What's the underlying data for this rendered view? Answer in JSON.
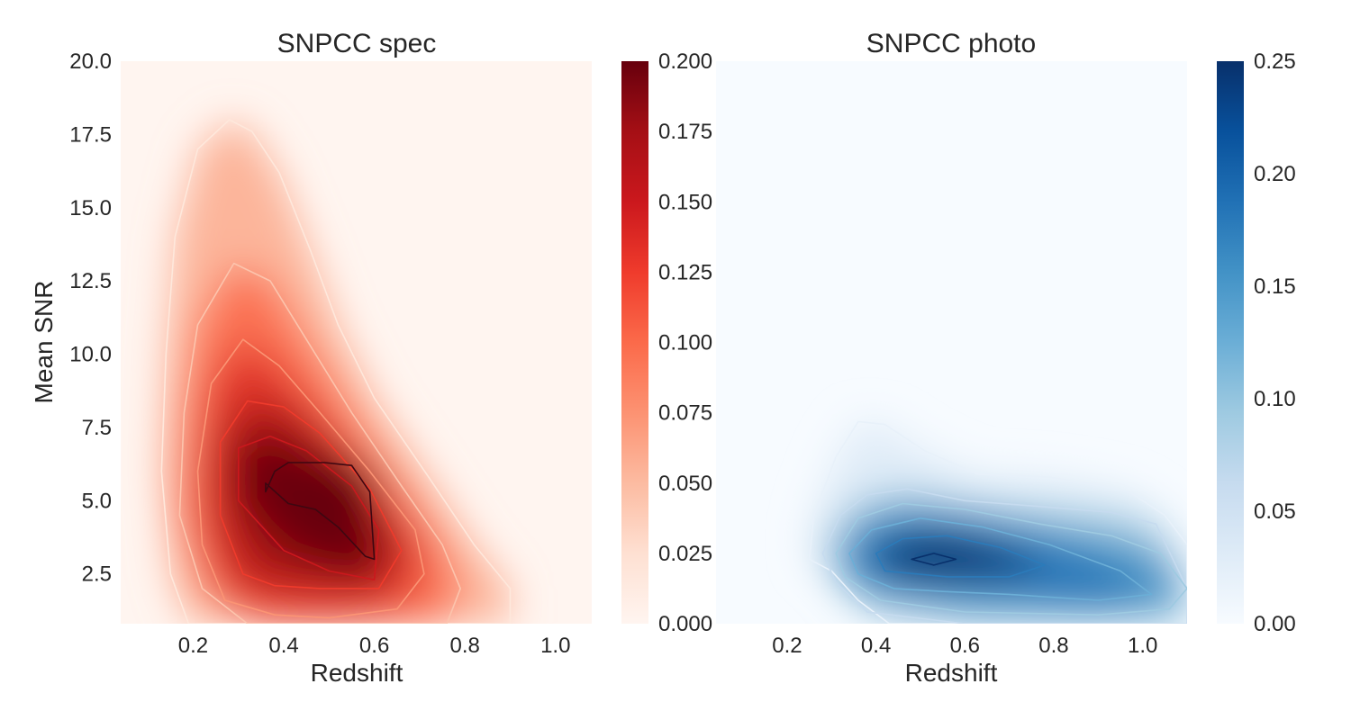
{
  "chart_data": [
    {
      "type": "heatmap",
      "title": "SNPCC spec",
      "xlabel": "Redshift",
      "ylabel": "Mean SNR",
      "colormap": "Reds",
      "xlim": [
        0.04,
        1.08
      ],
      "ylim": [
        0.8,
        20.0
      ],
      "x_ticks": [
        "0.2",
        "0.4",
        "0.6",
        "0.8",
        "1.0"
      ],
      "y_ticks": [
        "2.5",
        "5.0",
        "7.5",
        "10.0",
        "12.5",
        "15.0",
        "17.5",
        "20.0"
      ],
      "colorbar_range": [
        0.0,
        0.2
      ],
      "colorbar_ticks": [
        "0.000",
        "0.025",
        "0.050",
        "0.075",
        "0.100",
        "0.125",
        "0.150",
        "0.175",
        "0.200"
      ],
      "density_peak": {
        "x": 0.5,
        "y": 5.2,
        "value": 0.19
      },
      "contours": [
        {
          "level": 0.02,
          "color": "#fee8dc",
          "points": [
            [
              0.19,
              0.8
            ],
            [
              0.15,
              2.5
            ],
            [
              0.13,
              6.0
            ],
            [
              0.14,
              10.0
            ],
            [
              0.16,
              14.0
            ],
            [
              0.21,
              17.0
            ],
            [
              0.28,
              18.0
            ],
            [
              0.33,
              17.6
            ],
            [
              0.39,
              16.2
            ],
            [
              0.46,
              13.5
            ],
            [
              0.52,
              11.0
            ],
            [
              0.6,
              8.5
            ],
            [
              0.72,
              5.8
            ],
            [
              0.82,
              3.5
            ],
            [
              0.9,
              2.0
            ],
            [
              0.9,
              0.8
            ]
          ]
        },
        {
          "level": 0.05,
          "color": "#fcc4ad",
          "points": [
            [
              0.32,
              0.8
            ],
            [
              0.22,
              2.0
            ],
            [
              0.17,
              4.5
            ],
            [
              0.18,
              8.0
            ],
            [
              0.21,
              11.0
            ],
            [
              0.29,
              13.1
            ],
            [
              0.37,
              12.5
            ],
            [
              0.45,
              10.5
            ],
            [
              0.55,
              8.0
            ],
            [
              0.66,
              5.5
            ],
            [
              0.75,
              3.5
            ],
            [
              0.79,
              2.0
            ],
            [
              0.76,
              0.8
            ]
          ]
        },
        {
          "level": 0.085,
          "color": "#fb9474",
          "points": [
            [
              0.27,
              1.6
            ],
            [
              0.22,
              3.5
            ],
            [
              0.21,
              6.0
            ],
            [
              0.24,
              9.0
            ],
            [
              0.31,
              10.5
            ],
            [
              0.39,
              9.6
            ],
            [
              0.48,
              8.0
            ],
            [
              0.59,
              6.0
            ],
            [
              0.69,
              4.0
            ],
            [
              0.71,
              2.5
            ],
            [
              0.65,
              1.3
            ],
            [
              0.5,
              1.0
            ],
            [
              0.38,
              1.1
            ]
          ]
        },
        {
          "level": 0.12,
          "color": "#ef3b2c",
          "points": [
            [
              0.31,
              2.5
            ],
            [
              0.26,
              4.5
            ],
            [
              0.26,
              7.0
            ],
            [
              0.32,
              8.4
            ],
            [
              0.4,
              8.2
            ],
            [
              0.48,
              7.3
            ],
            [
              0.59,
              5.4
            ],
            [
              0.66,
              3.3
            ],
            [
              0.61,
              2.0
            ],
            [
              0.48,
              2.0
            ],
            [
              0.38,
              2.1
            ]
          ]
        },
        {
          "level": 0.15,
          "color": "#cb181d",
          "points": [
            [
              0.3,
              5.0
            ],
            [
              0.3,
              6.8
            ],
            [
              0.37,
              7.2
            ],
            [
              0.45,
              6.7
            ],
            [
              0.55,
              5.5
            ],
            [
              0.61,
              4.0
            ],
            [
              0.6,
              2.3
            ],
            [
              0.5,
              2.6
            ],
            [
              0.4,
              3.3
            ]
          ]
        },
        {
          "level": 0.18,
          "color": "#3d0711",
          "points": [
            [
              0.36,
              5.3
            ],
            [
              0.38,
              6.0
            ],
            [
              0.41,
              6.3
            ],
            [
              0.49,
              6.3
            ],
            [
              0.55,
              6.2
            ],
            [
              0.59,
              5.3
            ],
            [
              0.6,
              3.0
            ],
            [
              0.58,
              3.1
            ],
            [
              0.52,
              4.1
            ],
            [
              0.47,
              4.7
            ],
            [
              0.41,
              4.9
            ],
            [
              0.36,
              5.6
            ]
          ]
        }
      ]
    },
    {
      "type": "heatmap",
      "title": "SNPCC photo",
      "xlabel": "Redshift",
      "ylabel": "",
      "colormap": "Blues",
      "xlim": [
        0.04,
        1.1
      ],
      "ylim": [
        0.8,
        20.0
      ],
      "x_ticks": [
        "0.2",
        "0.4",
        "0.6",
        "0.8",
        "1.0"
      ],
      "y_ticks": [],
      "colorbar_range": [
        0.0,
        0.25
      ],
      "colorbar_ticks": [
        "0.00",
        "0.05",
        "0.10",
        "0.15",
        "0.20",
        "0.25"
      ],
      "density_peak": {
        "x": 0.54,
        "y": 3.0,
        "value": 0.24
      },
      "contours": [
        {
          "level": 0.03,
          "color": "#e8f1fa",
          "points": [
            [
              0.43,
              0.8
            ],
            [
              0.36,
              1.6
            ],
            [
              0.3,
              2.6
            ],
            [
              0.25,
              3.0
            ],
            [
              0.26,
              4.5
            ],
            [
              0.31,
              6.5
            ],
            [
              0.36,
              7.7
            ],
            [
              0.42,
              7.6
            ],
            [
              0.51,
              6.7
            ],
            [
              0.63,
              5.9
            ],
            [
              0.79,
              5.8
            ],
            [
              0.91,
              5.5
            ],
            [
              0.97,
              5.3
            ],
            [
              1.05,
              4.5
            ],
            [
              1.1,
              3.5
            ],
            [
              1.1,
              0.8
            ]
          ]
        },
        {
          "level": 0.07,
          "color": "#c6dbef",
          "points": [
            [
              0.38,
              1.2
            ],
            [
              0.31,
              2.2
            ],
            [
              0.28,
              3.2
            ],
            [
              0.32,
              4.5
            ],
            [
              0.38,
              5.2
            ],
            [
              0.47,
              5.4
            ],
            [
              0.6,
              5.0
            ],
            [
              0.77,
              4.8
            ],
            [
              0.93,
              4.6
            ],
            [
              1.03,
              4.2
            ],
            [
              1.1,
              2.0
            ],
            [
              1.1,
              0.8
            ],
            [
              0.9,
              0.8
            ],
            [
              0.6,
              0.8
            ]
          ]
        },
        {
          "level": 0.12,
          "color": "#9ecae1",
          "points": [
            [
              0.41,
              1.6
            ],
            [
              0.33,
              2.4
            ],
            [
              0.31,
              3.2
            ],
            [
              0.36,
              4.4
            ],
            [
              0.46,
              4.9
            ],
            [
              0.6,
              4.7
            ],
            [
              0.77,
              4.2
            ],
            [
              0.93,
              3.8
            ],
            [
              1.04,
              3.2
            ],
            [
              1.1,
              2.0
            ],
            [
              1.06,
              1.3
            ],
            [
              0.9,
              1.1
            ],
            [
              0.6,
              1.2
            ]
          ]
        },
        {
          "level": 0.16,
          "color": "#6baed6",
          "points": [
            [
              0.44,
              2.0
            ],
            [
              0.36,
              2.5
            ],
            [
              0.34,
              3.2
            ],
            [
              0.39,
              4.0
            ],
            [
              0.5,
              4.4
            ],
            [
              0.64,
              4.1
            ],
            [
              0.79,
              3.5
            ],
            [
              0.95,
              2.6
            ],
            [
              1.02,
              1.8
            ],
            [
              0.9,
              1.6
            ],
            [
              0.7,
              1.8
            ],
            [
              0.55,
              1.9
            ]
          ]
        },
        {
          "level": 0.2,
          "color": "#2b7bba",
          "points": [
            [
              0.42,
              2.6
            ],
            [
              0.4,
              3.2
            ],
            [
              0.46,
              3.7
            ],
            [
              0.56,
              3.8
            ],
            [
              0.68,
              3.4
            ],
            [
              0.78,
              2.8
            ],
            [
              0.7,
              2.4
            ],
            [
              0.56,
              2.4
            ]
          ]
        },
        {
          "level": 0.235,
          "color": "#08306b",
          "points": [
            [
              0.48,
              3.0
            ],
            [
              0.53,
              3.2
            ],
            [
              0.58,
              3.0
            ],
            [
              0.53,
              2.8
            ]
          ]
        }
      ]
    }
  ]
}
